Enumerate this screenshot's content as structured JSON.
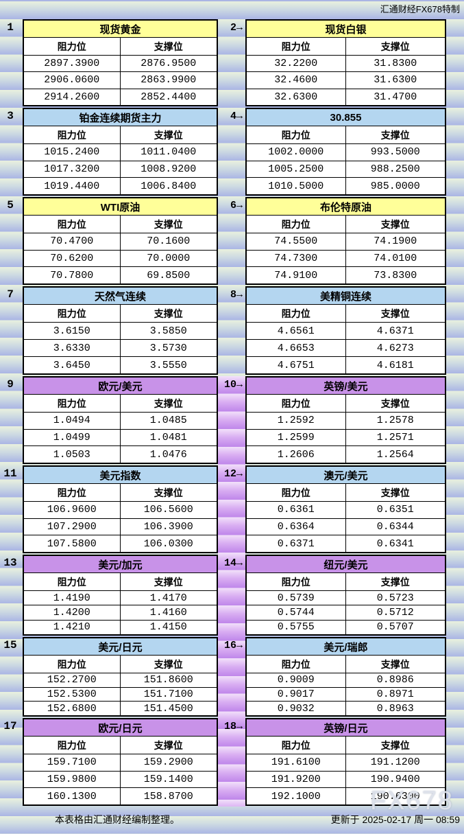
{
  "page": {
    "brand_top": "汇通财经FX678特制",
    "footer_left": "本表格由汇通财经编制整理。",
    "footer_right": "更新于 2025-02-17 周一 08:59",
    "watermark": "FX678"
  },
  "labels": {
    "resistance": "阻力位",
    "support": "支撑位"
  },
  "colors": {
    "title_yellow": "#ffff99",
    "title_blue": "#b4d6f0",
    "title_purple": "#c892e8",
    "stripe_green": "#e9f1de",
    "stripe_blue": "#aab5e4",
    "stripe_purple_light": "#f2e1fa",
    "stripe_purple_dark": "#bf86ea",
    "table_bg": "#ffffff",
    "border": "#000000"
  },
  "sections": [
    {
      "left_no": "1",
      "mid_no": "2→",
      "left": {
        "title": "现货黄金",
        "color": "yellow",
        "rows": [
          [
            "2897.3900",
            "2876.9500"
          ],
          [
            "2906.0600",
            "2863.9900"
          ],
          [
            "2914.2600",
            "2852.4400"
          ]
        ]
      },
      "right": {
        "title": "现货白银",
        "color": "yellow",
        "rows": [
          [
            "32.2200",
            "31.8300"
          ],
          [
            "32.4600",
            "31.6300"
          ],
          [
            "32.6300",
            "31.4700"
          ]
        ]
      }
    },
    {
      "left_no": "3",
      "mid_no": "4→",
      "left": {
        "title": "铂金连续期货主力",
        "color": "blue",
        "rows": [
          [
            "1015.2400",
            "1011.0400"
          ],
          [
            "1017.3200",
            "1008.9200"
          ],
          [
            "1019.4400",
            "1006.8400"
          ]
        ]
      },
      "right": {
        "title": "30.855",
        "color": "blue",
        "rows": [
          [
            "1002.0000",
            "993.5000"
          ],
          [
            "1005.2500",
            "988.2500"
          ],
          [
            "1010.5000",
            "985.0000"
          ]
        ]
      }
    },
    {
      "left_no": "5",
      "mid_no": "6→",
      "left": {
        "title": "WTI原油",
        "color": "yellow",
        "rows": [
          [
            "70.4700",
            "70.1600"
          ],
          [
            "70.6200",
            "70.0000"
          ],
          [
            "70.7800",
            "69.8500"
          ]
        ]
      },
      "right": {
        "title": "布伦特原油",
        "color": "yellow",
        "rows": [
          [
            "74.5500",
            "74.1900"
          ],
          [
            "74.7300",
            "74.0100"
          ],
          [
            "74.9100",
            "73.8300"
          ]
        ]
      }
    },
    {
      "left_no": "7",
      "mid_no": "8→",
      "left": {
        "title": "天然气连续",
        "color": "blue",
        "rows": [
          [
            "3.6150",
            "3.5850"
          ],
          [
            "3.6330",
            "3.5730"
          ],
          [
            "3.6450",
            "3.5550"
          ]
        ]
      },
      "right": {
        "title": "美精铜连续",
        "color": "blue",
        "rows": [
          [
            "4.6561",
            "4.6371"
          ],
          [
            "4.6653",
            "4.6273"
          ],
          [
            "4.6751",
            "4.6181"
          ]
        ]
      }
    },
    {
      "left_no": "9",
      "mid_no": "10→",
      "left": {
        "title": "欧元/美元",
        "color": "purple",
        "rows": [
          [
            "1.0494",
            "1.0485"
          ],
          [
            "1.0499",
            "1.0481"
          ],
          [
            "1.0503",
            "1.0476"
          ]
        ]
      },
      "right": {
        "title": "英镑/美元",
        "color": "purple",
        "rows": [
          [
            "1.2592",
            "1.2578"
          ],
          [
            "1.2599",
            "1.2571"
          ],
          [
            "1.2606",
            "1.2564"
          ]
        ]
      }
    },
    {
      "left_no": "11",
      "mid_no": "12→",
      "left": {
        "title": "美元指数",
        "color": "blue",
        "rows": [
          [
            "106.9600",
            "106.5600"
          ],
          [
            "107.2900",
            "106.3900"
          ],
          [
            "107.5800",
            "106.0300"
          ]
        ]
      },
      "right": {
        "title": "澳元/美元",
        "color": "blue",
        "rows": [
          [
            "0.6361",
            "0.6351"
          ],
          [
            "0.6364",
            "0.6344"
          ],
          [
            "0.6371",
            "0.6341"
          ]
        ]
      }
    },
    {
      "left_no": "13",
      "mid_no": "14→",
      "left": {
        "title": "美元/加元",
        "color": "purple",
        "rows": [
          [
            "1.4190",
            "1.4170"
          ],
          [
            "1.4200",
            "1.4160"
          ],
          [
            "1.4210",
            "1.4150"
          ]
        ]
      },
      "right": {
        "title": "纽元/美元",
        "color": "purple",
        "rows": [
          [
            "0.5739",
            "0.5723"
          ],
          [
            "0.5744",
            "0.5712"
          ],
          [
            "0.5755",
            "0.5707"
          ]
        ]
      }
    },
    {
      "left_no": "15",
      "mid_no": "16→",
      "left": {
        "title": "美元/日元",
        "color": "blue",
        "rows": [
          [
            "152.2700",
            "151.8600"
          ],
          [
            "152.5300",
            "151.7100"
          ],
          [
            "152.6800",
            "151.4500"
          ]
        ]
      },
      "right": {
        "title": "美元/瑞郎",
        "color": "blue",
        "rows": [
          [
            "0.9009",
            "0.8986"
          ],
          [
            "0.9017",
            "0.8971"
          ],
          [
            "0.9032",
            "0.8963"
          ]
        ]
      }
    },
    {
      "left_no": "17",
      "mid_no": "18→",
      "left": {
        "title": "欧元/日元",
        "color": "purple",
        "rows": [
          [
            "159.7100",
            "159.2900"
          ],
          [
            "159.9800",
            "159.1400"
          ],
          [
            "160.1300",
            "158.8700"
          ]
        ]
      },
      "right": {
        "title": "英镑/日元",
        "color": "purple",
        "rows": [
          [
            "191.6100",
            "191.1200"
          ],
          [
            "191.9200",
            "190.9400"
          ],
          [
            "192.1000",
            "190.6300"
          ]
        ]
      }
    }
  ]
}
